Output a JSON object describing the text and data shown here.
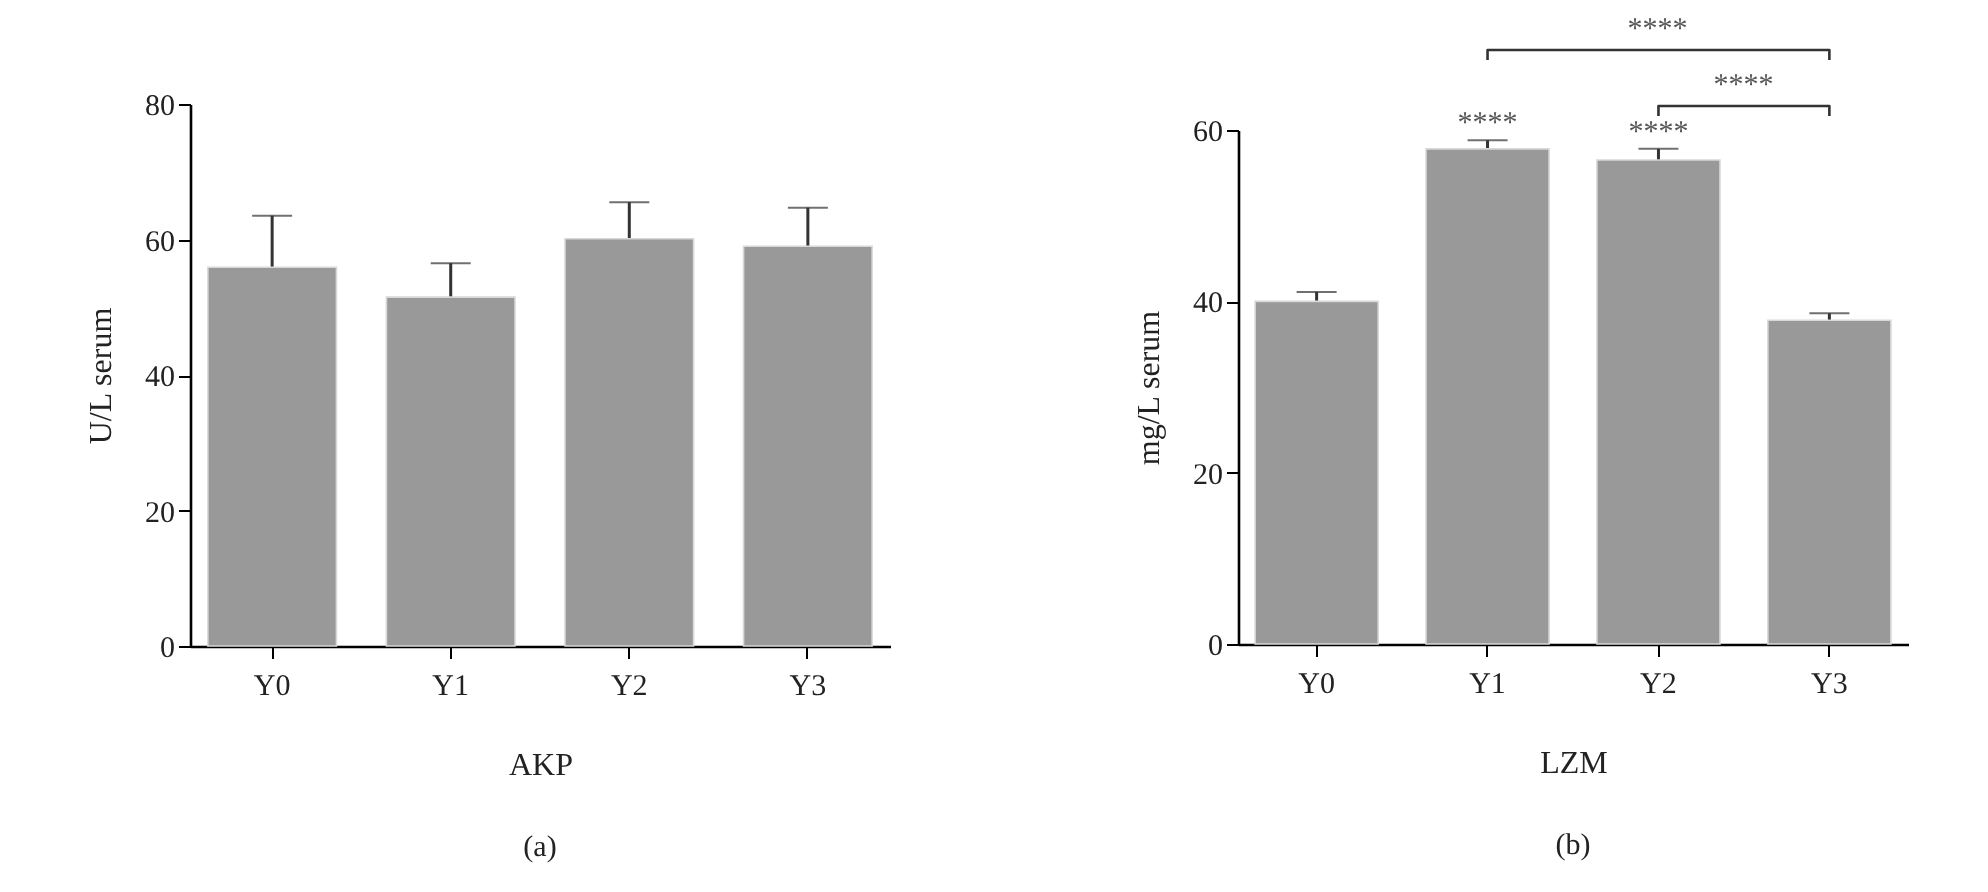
{
  "chart_data": [
    {
      "type": "bar",
      "xlabel": "AKP",
      "ylabel": "U/L serum",
      "categories": [
        "Y0",
        "Y1",
        "Y2",
        "Y3"
      ],
      "values": [
        55.9,
        51.5,
        60.1,
        59.0
      ],
      "errors": [
        7.6,
        5.0,
        5.4,
        5.7
      ],
      "color": "#999999",
      "ylim": [
        0,
        80
      ],
      "yticks": [
        0,
        20,
        40,
        60,
        80
      ],
      "annotations": [
        "(a)"
      ]
    },
    {
      "type": "bar",
      "xlabel": "LZM",
      "ylabel": "mg/L serum",
      "categories": [
        "Y0",
        "Y1",
        "Y2",
        "Y3"
      ],
      "values": [
        40.0,
        57.8,
        56.5,
        37.8
      ],
      "errors": [
        1.1,
        1.0,
        1.3,
        0.8
      ],
      "color": "#999999",
      "ylim": [
        0,
        60
      ],
      "yticks": [
        0,
        20,
        40,
        60
      ],
      "annotations": [
        {
          "text": "****",
          "x": "Y1",
          "y": 58.8
        },
        {
          "text": "****",
          "x": "Y2",
          "y": 57.8
        },
        "****",
        "****",
        "(b)"
      ]
    }
  ]
}
